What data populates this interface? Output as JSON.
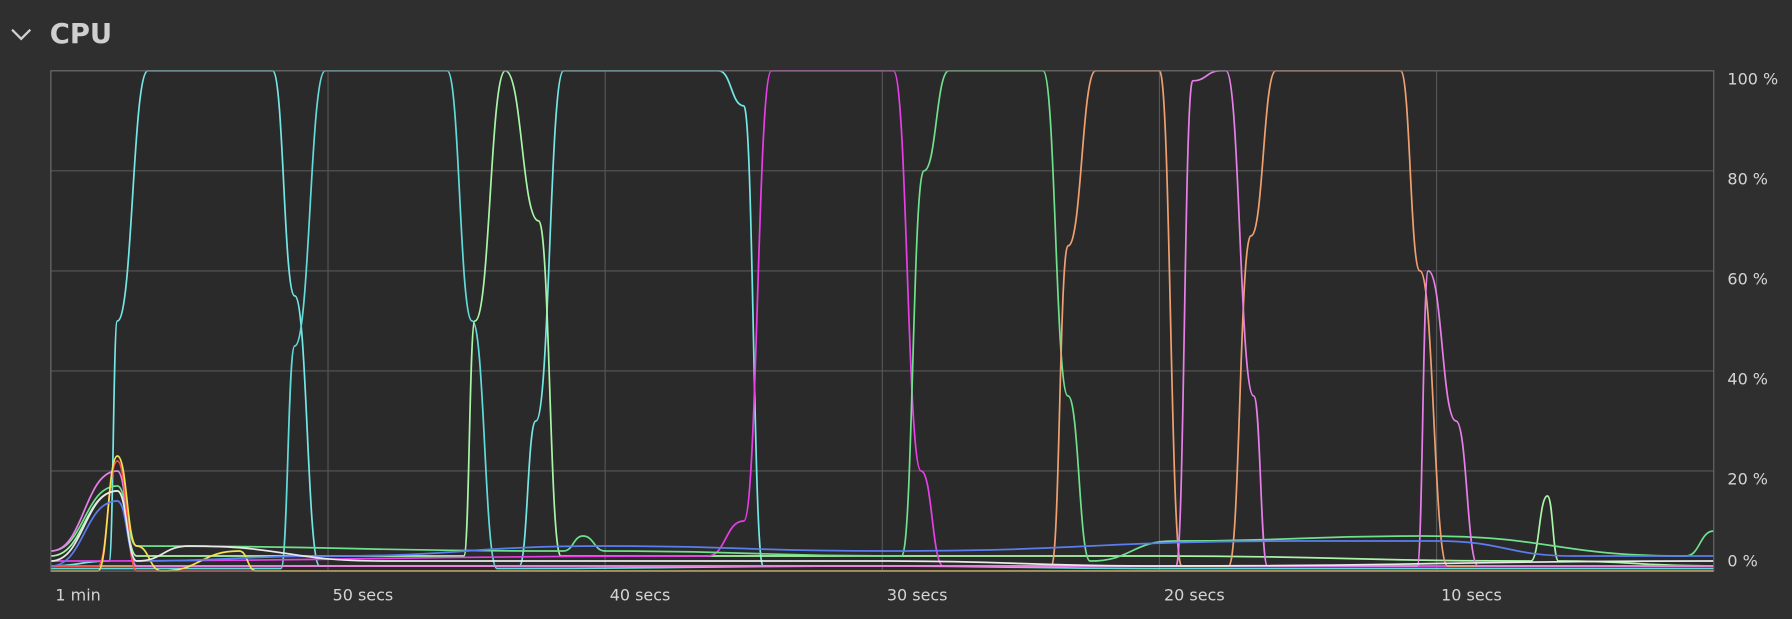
{
  "chart_data": {
    "type": "line",
    "title": "CPU",
    "xlim": [
      60,
      0
    ],
    "ylim": [
      0,
      100
    ],
    "xticks": [
      {
        "value": 60,
        "label": "1 min"
      },
      {
        "value": 50,
        "label": "50 secs"
      },
      {
        "value": 40,
        "label": "40 secs"
      },
      {
        "value": 30,
        "label": "30 secs"
      },
      {
        "value": 20,
        "label": "20 secs"
      },
      {
        "value": 10,
        "label": "10 secs"
      }
    ],
    "yticks": [
      {
        "value": 100,
        "label": "100 %"
      },
      {
        "value": 80,
        "label": "80 %"
      },
      {
        "value": 60,
        "label": "60 %"
      },
      {
        "value": 40,
        "label": "40 %"
      },
      {
        "value": 20,
        "label": "20 %"
      },
      {
        "value": 0,
        "label": "0 %"
      }
    ],
    "grid": true,
    "series": [
      {
        "color": "#73e6e6",
        "x": [
          60,
          57.9,
          57.6,
          56.5,
          52.0,
          51.2,
          50.3,
          43.1,
          42.5,
          41.5,
          35.9,
          35.0,
          34.3,
          0
        ],
        "values": [
          1,
          2,
          50,
          100,
          100,
          55,
          1,
          1,
          30,
          100,
          100,
          93,
          1,
          1
        ]
      },
      {
        "color": "#62dada",
        "x": [
          60,
          51.7,
          51.2,
          50.1,
          45.7,
          44.8,
          43.9,
          30,
          20,
          0
        ],
        "values": [
          0.5,
          0.5,
          45,
          100,
          100,
          50,
          0.5,
          1,
          0.5,
          0.5
        ]
      },
      {
        "color": "#a8f5a8",
        "x": [
          60,
          57.6,
          56.9,
          45.1,
          44.7,
          43.6,
          42.4,
          41.6,
          20,
          6.6,
          6.0,
          5.6,
          0
        ],
        "values": [
          3,
          16,
          3,
          3,
          50,
          100,
          70,
          3,
          3,
          2,
          15,
          2,
          1
        ]
      },
      {
        "color": "#e83ee8",
        "x": [
          60,
          36.3,
          35.0,
          34.0,
          29.6,
          28.6,
          27.8,
          0
        ],
        "values": [
          2,
          3,
          10,
          100,
          100,
          20,
          1,
          1
        ]
      },
      {
        "color": "#6fe08c",
        "x": [
          60,
          57.6,
          56.9,
          41.5,
          40.8,
          40.0,
          29.3,
          28.5,
          27.6,
          24.2,
          23.3,
          22.5,
          19.5,
          10.5,
          1.0,
          0
        ],
        "values": [
          4,
          17,
          5,
          4,
          7,
          4,
          3,
          80,
          100,
          100,
          35,
          2,
          6,
          7,
          3,
          8
        ]
      },
      {
        "color": "#f0a070",
        "x": [
          60,
          23.9,
          23.3,
          22.3,
          20.0,
          19.2,
          17.5,
          16.7,
          15.8,
          11.3,
          10.6,
          9.6,
          0
        ],
        "values": [
          1,
          1,
          65,
          100,
          100,
          1,
          1,
          67,
          100,
          100,
          60,
          1,
          1
        ]
      },
      {
        "color": "#e77fe9",
        "x": [
          60,
          57.6,
          56.9,
          19.4,
          18.8,
          17.8,
          17.6,
          16.6,
          16.1,
          10.7,
          10.3,
          9.3,
          8.5,
          0
        ],
        "values": [
          4,
          20,
          1,
          1,
          98,
          100,
          100,
          35,
          1,
          1,
          60,
          30,
          1,
          1
        ]
      },
      {
        "color": "#ff4a4a",
        "x": [
          60,
          58.3,
          57.6,
          56.9,
          0
        ],
        "values": [
          1,
          1,
          22,
          0,
          0
        ]
      },
      {
        "color": "#f5e050",
        "x": [
          60,
          58.3,
          57.6,
          56.9,
          56.0,
          53.2,
          52.6,
          0
        ],
        "values": [
          0,
          0,
          23,
          5,
          0,
          4,
          0,
          0
        ]
      },
      {
        "color": "#5a7ef0",
        "x": [
          60,
          57.6,
          56.9,
          50,
          40,
          30,
          15,
          10,
          5,
          0
        ],
        "values": [
          1,
          14,
          2,
          3,
          5,
          4,
          6,
          6,
          3,
          3
        ]
      },
      {
        "color": "#e8e8e8",
        "x": [
          60,
          57.6,
          56.9,
          55,
          48,
          30,
          20,
          0
        ],
        "values": [
          2,
          16,
          2,
          5,
          2,
          2,
          1,
          2
        ]
      }
    ]
  }
}
